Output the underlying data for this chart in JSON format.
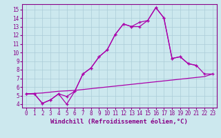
{
  "line1_x": [
    0,
    1,
    2,
    3,
    4,
    5,
    6,
    7,
    8,
    9,
    10,
    11,
    12,
    13,
    14,
    15,
    16,
    17,
    18,
    19,
    20,
    21,
    22,
    23
  ],
  "line1_y": [
    5.2,
    5.2,
    4.1,
    4.5,
    5.2,
    4.0,
    5.5,
    7.5,
    8.2,
    9.5,
    10.3,
    12.1,
    13.3,
    13.0,
    13.0,
    13.7,
    15.2,
    14.0,
    9.3,
    9.5,
    8.7,
    8.5,
    null,
    null
  ],
  "line2_x": [
    0,
    1,
    2,
    3,
    4,
    5,
    6,
    7,
    8,
    9,
    10,
    11,
    12,
    13,
    14,
    15,
    16,
    17,
    18,
    19,
    20,
    21,
    22,
    23
  ],
  "line2_y": [
    5.2,
    5.25,
    5.3,
    5.4,
    5.5,
    5.55,
    5.6,
    5.7,
    5.8,
    5.9,
    6.0,
    6.1,
    6.2,
    6.3,
    6.4,
    6.5,
    6.6,
    6.7,
    6.8,
    6.9,
    7.0,
    7.1,
    7.2,
    7.5
  ],
  "line3_x": [
    0,
    1,
    2,
    3,
    4,
    5,
    6,
    7,
    8,
    9,
    10,
    11,
    12,
    13,
    14,
    15,
    16,
    17,
    18,
    19,
    20,
    21,
    22,
    23
  ],
  "line3_y": [
    5.2,
    5.2,
    4.1,
    4.5,
    5.2,
    4.9,
    5.5,
    7.5,
    8.2,
    9.5,
    10.3,
    12.1,
    13.3,
    13.0,
    13.5,
    13.7,
    15.2,
    14.0,
    9.3,
    9.5,
    8.7,
    8.5,
    7.5,
    7.5
  ],
  "line_color": "#aa00aa",
  "bg_color": "#cce8ee",
  "grid_color": "#aaccd8",
  "axis_color": "#880088",
  "xlabel": "Windchill (Refroidissement éolien,°C)",
  "xlim": [
    -0.5,
    23.5
  ],
  "ylim": [
    3.6,
    15.6
  ],
  "yticks": [
    4,
    5,
    6,
    7,
    8,
    9,
    10,
    11,
    12,
    13,
    14,
    15
  ],
  "xticks": [
    0,
    1,
    2,
    3,
    4,
    5,
    6,
    7,
    8,
    9,
    10,
    11,
    12,
    13,
    14,
    15,
    16,
    17,
    18,
    19,
    20,
    21,
    22,
    23
  ],
  "tick_fontsize": 5.5,
  "label_fontsize": 6.5
}
